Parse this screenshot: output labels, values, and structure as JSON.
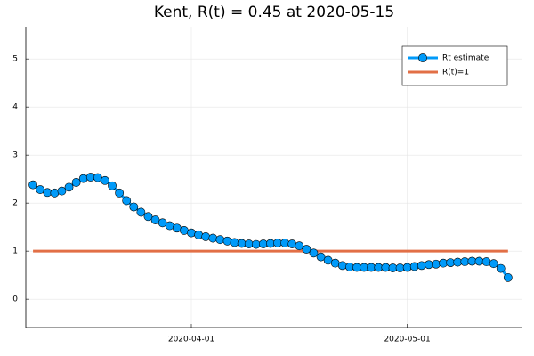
{
  "chart_data": {
    "type": "line",
    "title": "Kent, R(t) = 0.45 at 2020-05-15",
    "x": [
      "2020-03-10",
      "2020-03-11",
      "2020-03-12",
      "2020-03-13",
      "2020-03-14",
      "2020-03-15",
      "2020-03-16",
      "2020-03-17",
      "2020-03-18",
      "2020-03-19",
      "2020-03-20",
      "2020-03-21",
      "2020-03-22",
      "2020-03-23",
      "2020-03-24",
      "2020-03-25",
      "2020-03-26",
      "2020-03-27",
      "2020-03-28",
      "2020-03-29",
      "2020-03-30",
      "2020-03-31",
      "2020-04-01",
      "2020-04-02",
      "2020-04-03",
      "2020-04-04",
      "2020-04-05",
      "2020-04-06",
      "2020-04-07",
      "2020-04-08",
      "2020-04-09",
      "2020-04-10",
      "2020-04-11",
      "2020-04-12",
      "2020-04-13",
      "2020-04-14",
      "2020-04-15",
      "2020-04-16",
      "2020-04-17",
      "2020-04-18",
      "2020-04-19",
      "2020-04-20",
      "2020-04-21",
      "2020-04-22",
      "2020-04-23",
      "2020-04-24",
      "2020-04-25",
      "2020-04-26",
      "2020-04-27",
      "2020-04-28",
      "2020-04-29",
      "2020-04-30",
      "2020-05-01",
      "2020-05-02",
      "2020-05-03",
      "2020-05-04",
      "2020-05-05",
      "2020-05-06",
      "2020-05-07",
      "2020-05-08",
      "2020-05-09",
      "2020-05-10",
      "2020-05-11",
      "2020-05-12",
      "2020-05-13",
      "2020-05-14",
      "2020-05-15"
    ],
    "series": [
      {
        "name": "Rt estimate",
        "color": "#009af9",
        "markers": true,
        "values": [
          2.38,
          2.28,
          2.22,
          2.21,
          2.25,
          2.33,
          2.43,
          2.51,
          2.54,
          2.53,
          2.47,
          2.36,
          2.21,
          2.05,
          1.92,
          1.81,
          1.72,
          1.65,
          1.59,
          1.53,
          1.48,
          1.43,
          1.38,
          1.34,
          1.3,
          1.27,
          1.24,
          1.21,
          1.18,
          1.16,
          1.15,
          1.14,
          1.15,
          1.16,
          1.17,
          1.17,
          1.15,
          1.11,
          1.04,
          0.96,
          0.88,
          0.81,
          0.75,
          0.7,
          0.67,
          0.66,
          0.66,
          0.66,
          0.66,
          0.66,
          0.65,
          0.65,
          0.66,
          0.68,
          0.7,
          0.72,
          0.73,
          0.75,
          0.76,
          0.77,
          0.78,
          0.79,
          0.79,
          0.78,
          0.74,
          0.64,
          0.45
        ]
      },
      {
        "name": "R(t)=1",
        "color": "#e26f46",
        "markers": false,
        "values": [
          1,
          1,
          1,
          1,
          1,
          1,
          1,
          1,
          1,
          1,
          1,
          1,
          1,
          1,
          1,
          1,
          1,
          1,
          1,
          1,
          1,
          1,
          1,
          1,
          1,
          1,
          1,
          1,
          1,
          1,
          1,
          1,
          1,
          1,
          1,
          1,
          1,
          1,
          1,
          1,
          1,
          1,
          1,
          1,
          1,
          1,
          1,
          1,
          1,
          1,
          1,
          1,
          1,
          1,
          1,
          1,
          1,
          1,
          1,
          1,
          1,
          1,
          1,
          1,
          1,
          1,
          1
        ]
      }
    ],
    "xlim": [
      "2020-03-09",
      "2020-05-17"
    ],
    "xticks": [
      "2020-04-01",
      "2020-05-01"
    ],
    "ylim": [
      -0.59,
      5.67
    ],
    "yticks": [
      0,
      1,
      2,
      3,
      4,
      5
    ],
    "grid": true,
    "legend": "top-right"
  }
}
